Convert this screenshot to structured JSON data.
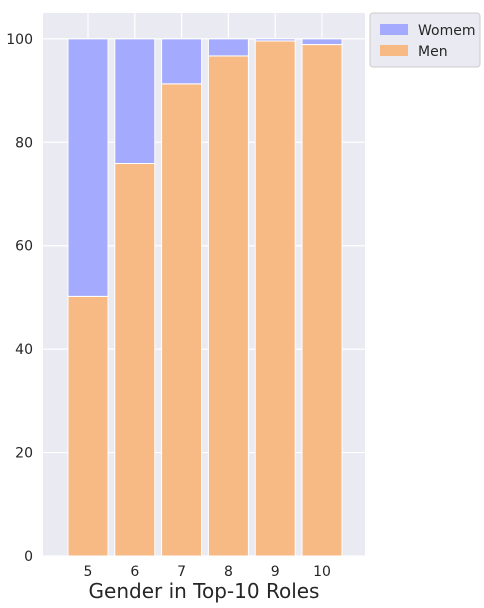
{
  "chart_data": {
    "type": "bar",
    "stacked": true,
    "title": "",
    "xlabel": "Gender in Top-10 Roles",
    "ylabel": "",
    "categories": [
      "5",
      "6",
      "7",
      "8",
      "9",
      "10"
    ],
    "series": [
      {
        "name": "Men",
        "values": [
          50.2,
          75.9,
          91.3,
          96.7,
          99.6,
          98.9
        ],
        "color": "#f8ba85"
      },
      {
        "name": "Womem",
        "values": [
          49.8,
          24.1,
          8.7,
          3.3,
          0.4,
          1.1
        ],
        "color": "#a4abfe"
      }
    ],
    "legend_order": [
      "Womem",
      "Men"
    ],
    "legend_position": "outside top-right",
    "ylim": [
      0,
      105
    ],
    "yticks": [
      0,
      20,
      40,
      60,
      80,
      100
    ],
    "grid": true,
    "background": "#eaeaf2"
  }
}
